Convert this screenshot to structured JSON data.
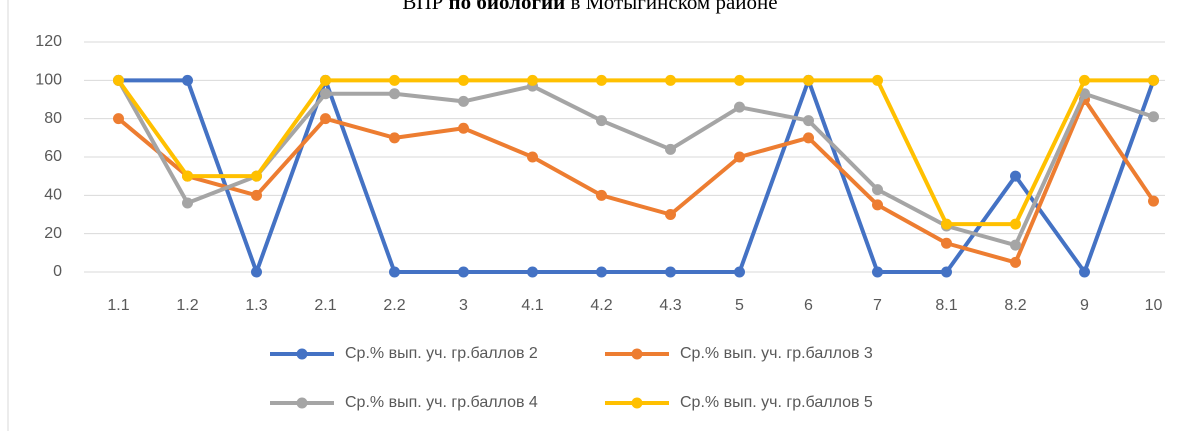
{
  "chart_data": {
    "type": "line",
    "title": [
      "ВПР ",
      "по биологии",
      " в Мотыгинском районе"
    ],
    "categories": [
      "1.1",
      "1.2",
      "1.3",
      "2.1",
      "2.2",
      "3",
      "4.1",
      "4.2",
      "4.3",
      "5",
      "6",
      "7",
      "8.1",
      "8.2",
      "9",
      "10"
    ],
    "series": [
      {
        "name": "Ср.% вып. уч. гр.баллов 2",
        "color": "#4472c4",
        "values": [
          100,
          100,
          0,
          100,
          0,
          0,
          0,
          0,
          0,
          0,
          100,
          0,
          0,
          50,
          0,
          100
        ]
      },
      {
        "name": "Ср.% вып. уч. гр.баллов 3",
        "color": "#ed7d31",
        "values": [
          80,
          50,
          40,
          80,
          70,
          75,
          60,
          40,
          30,
          60,
          70,
          35,
          15,
          5,
          90,
          37
        ]
      },
      {
        "name": "Ср.% вып. уч. гр.баллов 4",
        "color": "#a5a5a5",
        "values": [
          100,
          36,
          50,
          93,
          93,
          89,
          97,
          79,
          64,
          86,
          79,
          43,
          24,
          14,
          93,
          81
        ]
      },
      {
        "name": "Ср.% вып. уч. гр.баллов 5",
        "color": "#ffc000",
        "values": [
          100,
          50,
          50,
          100,
          100,
          100,
          100,
          100,
          100,
          100,
          100,
          100,
          25,
          25,
          100,
          100
        ]
      }
    ],
    "ylim": [
      0,
      120
    ],
    "yticks": [
      0,
      20,
      40,
      60,
      80,
      100,
      120
    ],
    "grid": true
  }
}
